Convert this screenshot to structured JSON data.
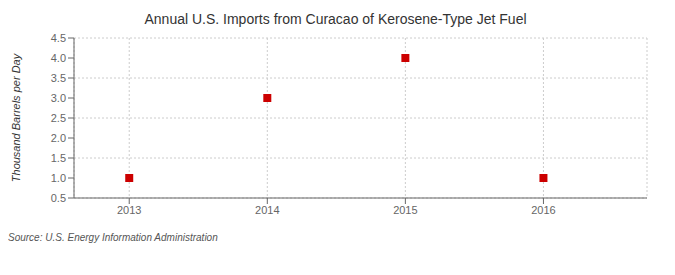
{
  "chart_data": {
    "type": "scatter",
    "title": "Annual U.S. Imports from Curacao of Kerosene-Type Jet Fuel",
    "y_label": "Thousand Barrels per Day",
    "annotations": [
      "Source: U.S. Energy Information Administration"
    ],
    "x": [
      2013,
      2014,
      2015,
      2016
    ],
    "values": [
      1.0,
      3.0,
      4.0,
      1.0
    ],
    "color": "#cc0000",
    "marker": "square",
    "xlim": [
      2012.6,
      2016.75
    ],
    "xticks": [
      2013,
      2014,
      2015,
      2016
    ],
    "ylim": [
      0.5,
      4.5
    ],
    "yticks": [
      0.5,
      {
        "value": 1.0,
        "label": "1.0"
      },
      1.5,
      {
        "value": 2.0,
        "label": "2.0"
      },
      2.5,
      {
        "value": 3.0,
        "label": "3.0"
      },
      3.5,
      {
        "value": 4.0,
        "label": "4.0"
      },
      4.5
    ],
    "grid": true
  }
}
